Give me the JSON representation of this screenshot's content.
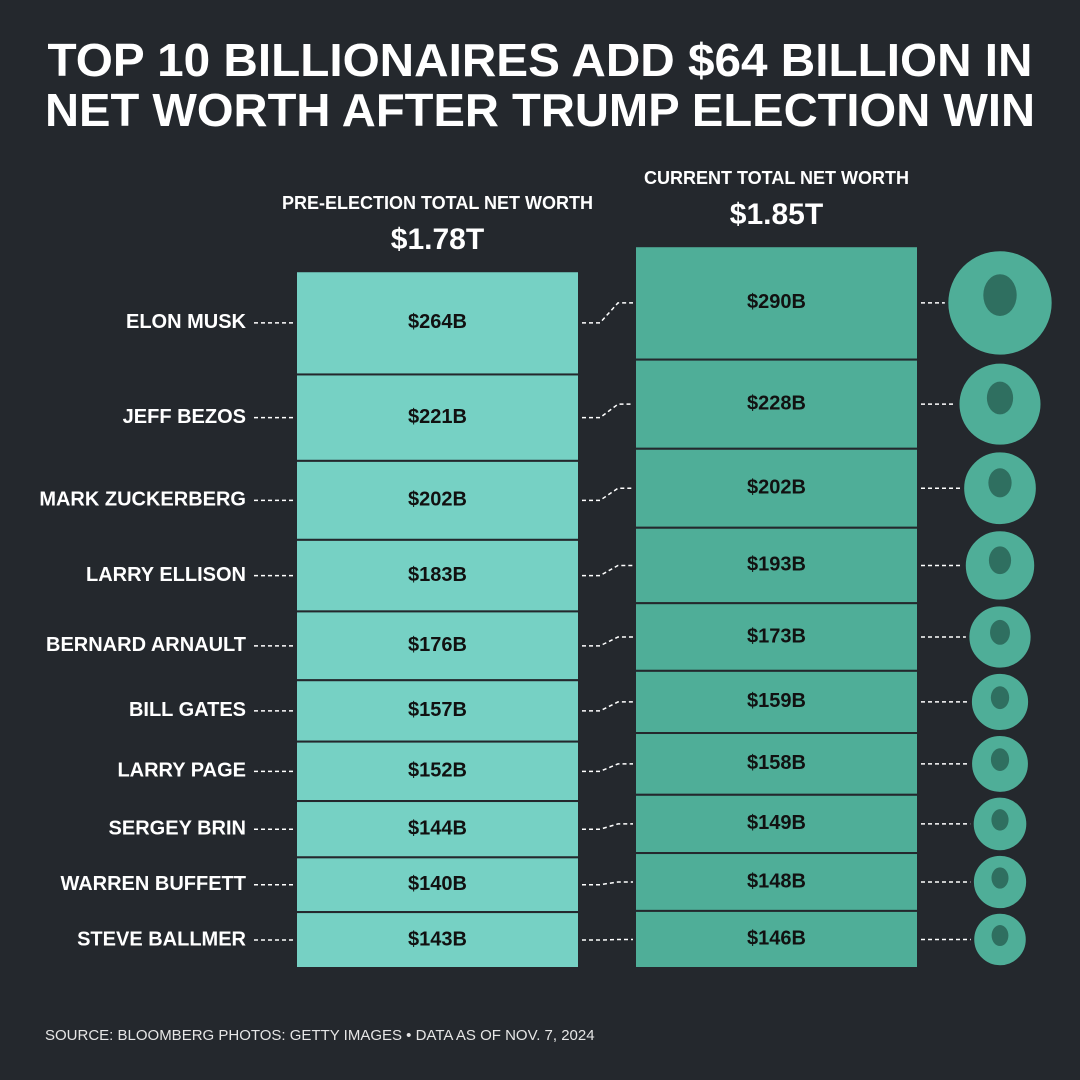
{
  "chart_data": {
    "type": "stacked-column",
    "title": [
      "TOP 10 BILLIONAIRES ADD $64 BILLION IN",
      "NET WORTH AFTER TRUMP ELECTION WIN"
    ],
    "categories": [
      "ELON MUSK",
      "JEFF BEZOS",
      "MARK ZUCKERBERG",
      "LARRY ELLISON",
      "BERNARD ARNAULT",
      "BILL GATES",
      "LARRY PAGE",
      "SERGEY BRIN",
      "WARREN BUFFETT",
      "STEVE BALLMER"
    ],
    "series": [
      {
        "name": "PRE-ELECTION TOTAL NET WORTH",
        "color": "#76d1c4",
        "total": 1780,
        "total_label": "$1.78T",
        "values": [
          264,
          221,
          202,
          183,
          176,
          157,
          152,
          144,
          140,
          143
        ],
        "value_labels": [
          "$264B",
          "$221B",
          "$202B",
          "$183B",
          "$176B",
          "$157B",
          "$152B",
          "$144B",
          "$140B",
          "$143B"
        ]
      },
      {
        "name": "CURRENT TOTAL NET WORTH",
        "color": "#4fae98",
        "total": 1850,
        "total_label": "$1.85T",
        "values": [
          290,
          228,
          202,
          193,
          173,
          159,
          158,
          149,
          148,
          146
        ],
        "value_labels": [
          "$290B",
          "$228B",
          "$202B",
          "$193B",
          "$173B",
          "$159B",
          "$158B",
          "$149B",
          "$148B",
          "$146B"
        ]
      }
    ],
    "source": "SOURCE:  BLOOMBERG  PHOTOS: GETTY IMAGES  •  DATA AS OF NOV. 7, 2024"
  }
}
